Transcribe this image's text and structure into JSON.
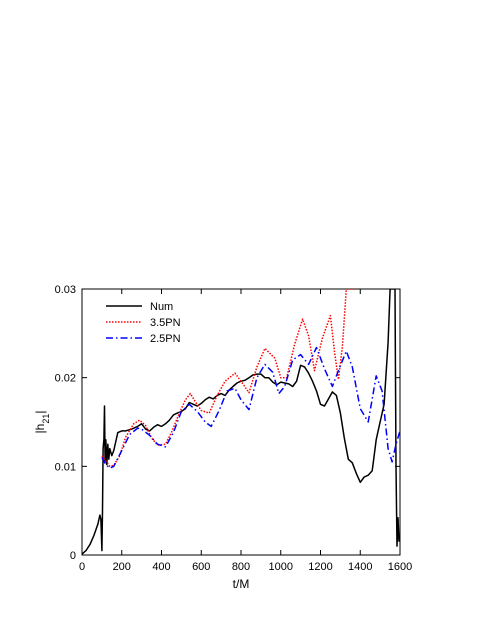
{
  "chart_data": {
    "type": "line",
    "title": "",
    "xlabel": "t/M",
    "ylabel": "|h21|",
    "ylabel_main": "|h",
    "ylabel_sub": "21",
    "ylabel_tail": "|",
    "xlim": [
      0,
      1600
    ],
    "ylim": [
      0,
      0.03
    ],
    "xticks": [
      0,
      200,
      400,
      600,
      800,
      1000,
      1200,
      1400,
      1600
    ],
    "xtick_labels": [
      "0",
      "200",
      "400",
      "600",
      "800",
      "1000",
      "1200",
      "1400",
      "1600"
    ],
    "yticks": [
      0,
      0.01,
      0.02,
      0.03
    ],
    "ytick_labels": [
      "0",
      "0.01",
      "0.02",
      "0.03"
    ],
    "grid": false,
    "legend_position": "top-left",
    "series": [
      {
        "name": "Num",
        "color": "#000000",
        "dash": "solid",
        "x": [
          0,
          20,
          40,
          60,
          80,
          90,
          95,
          100,
          103,
          106,
          110,
          113,
          116,
          120,
          125,
          130,
          135,
          140,
          150,
          160,
          170,
          180,
          200,
          220,
          250,
          280,
          300,
          320,
          340,
          360,
          380,
          400,
          420,
          440,
          460,
          480,
          500,
          520,
          540,
          560,
          580,
          600,
          620,
          640,
          660,
          680,
          700,
          720,
          740,
          760,
          780,
          800,
          820,
          840,
          860,
          880,
          900,
          920,
          940,
          960,
          980,
          1000,
          1020,
          1040,
          1060,
          1080,
          1100,
          1120,
          1140,
          1160,
          1180,
          1200,
          1220,
          1240,
          1260,
          1280,
          1300,
          1320,
          1340,
          1360,
          1380,
          1400,
          1420,
          1440,
          1460,
          1480,
          1500,
          1520,
          1540,
          1550,
          1560,
          1565,
          1570,
          1575,
          1580,
          1585,
          1590,
          1595
        ],
        "y": [
          0.0001,
          0.0005,
          0.0012,
          0.0022,
          0.0035,
          0.0045,
          0.004,
          0.0005,
          0.005,
          0.012,
          0.013,
          0.0168,
          0.0105,
          0.013,
          0.0102,
          0.0125,
          0.0108,
          0.012,
          0.0112,
          0.0118,
          0.0128,
          0.0138,
          0.014,
          0.014,
          0.0142,
          0.0145,
          0.0148,
          0.0142,
          0.014,
          0.0144,
          0.0147,
          0.0145,
          0.0148,
          0.0152,
          0.0158,
          0.016,
          0.0162,
          0.0165,
          0.0172,
          0.017,
          0.0168,
          0.0171,
          0.0175,
          0.0178,
          0.0176,
          0.018,
          0.0182,
          0.018,
          0.0186,
          0.019,
          0.0194,
          0.0196,
          0.0197,
          0.02,
          0.0203,
          0.0204,
          0.0204,
          0.02,
          0.02,
          0.0195,
          0.0192,
          0.0195,
          0.0194,
          0.0193,
          0.019,
          0.0196,
          0.0214,
          0.0212,
          0.0205,
          0.0196,
          0.0185,
          0.017,
          0.0168,
          0.0176,
          0.0184,
          0.018,
          0.016,
          0.0132,
          0.0108,
          0.0104,
          0.0092,
          0.0082,
          0.0088,
          0.009,
          0.0095,
          0.013,
          0.015,
          0.017,
          0.024,
          0.03,
          0.03,
          0.03,
          0.03,
          0.03,
          0.01,
          0.001,
          0.0042,
          0.0015
        ]
      },
      {
        "name": "3.5PN",
        "color": "#ff0000",
        "dash": "dotted",
        "x": [
          100,
          120,
          140,
          160,
          190,
          220,
          260,
          290,
          320,
          350,
          380,
          420,
          450,
          490,
          520,
          545,
          570,
          600,
          640,
          680,
          720,
          770,
          800,
          840,
          880,
          920,
          970,
          1000,
          1030,
          1070,
          1110,
          1140,
          1170,
          1210,
          1250,
          1270,
          1290,
          1310,
          1330,
          1350,
          1380
        ],
        "y": [
          0.0112,
          0.0106,
          0.01,
          0.0101,
          0.0112,
          0.0133,
          0.0148,
          0.0152,
          0.0146,
          0.0132,
          0.0124,
          0.0125,
          0.0138,
          0.016,
          0.0175,
          0.0182,
          0.0173,
          0.0163,
          0.016,
          0.018,
          0.0196,
          0.0205,
          0.0196,
          0.0183,
          0.0212,
          0.0233,
          0.0222,
          0.02,
          0.02,
          0.0238,
          0.0266,
          0.0247,
          0.0208,
          0.0245,
          0.027,
          0.023,
          0.0198,
          0.0235,
          0.03,
          0.03,
          0.03
        ]
      },
      {
        "name": "2.5PN",
        "color": "#0000ff",
        "dash": "dashdot",
        "x": [
          100,
          120,
          140,
          160,
          200,
          240,
          280,
          300,
          340,
          380,
          420,
          460,
          500,
          540,
          580,
          620,
          650,
          690,
          730,
          770,
          800,
          840,
          880,
          920,
          960,
          990,
          1020,
          1060,
          1100,
          1140,
          1180,
          1220,
          1260,
          1290,
          1330,
          1360,
          1400,
          1440,
          1480,
          1510,
          1540,
          1560,
          1580,
          1600
        ],
        "y": [
          0.011,
          0.0102,
          0.0098,
          0.01,
          0.0118,
          0.0136,
          0.0143,
          0.0142,
          0.0135,
          0.0125,
          0.0122,
          0.0138,
          0.0162,
          0.017,
          0.0162,
          0.015,
          0.0145,
          0.0163,
          0.0185,
          0.0188,
          0.0175,
          0.0164,
          0.02,
          0.0215,
          0.0206,
          0.0182,
          0.019,
          0.022,
          0.0226,
          0.0215,
          0.0234,
          0.021,
          0.019,
          0.0208,
          0.023,
          0.0212,
          0.0165,
          0.015,
          0.0202,
          0.0185,
          0.012,
          0.0105,
          0.0125,
          0.014
        ]
      }
    ]
  }
}
